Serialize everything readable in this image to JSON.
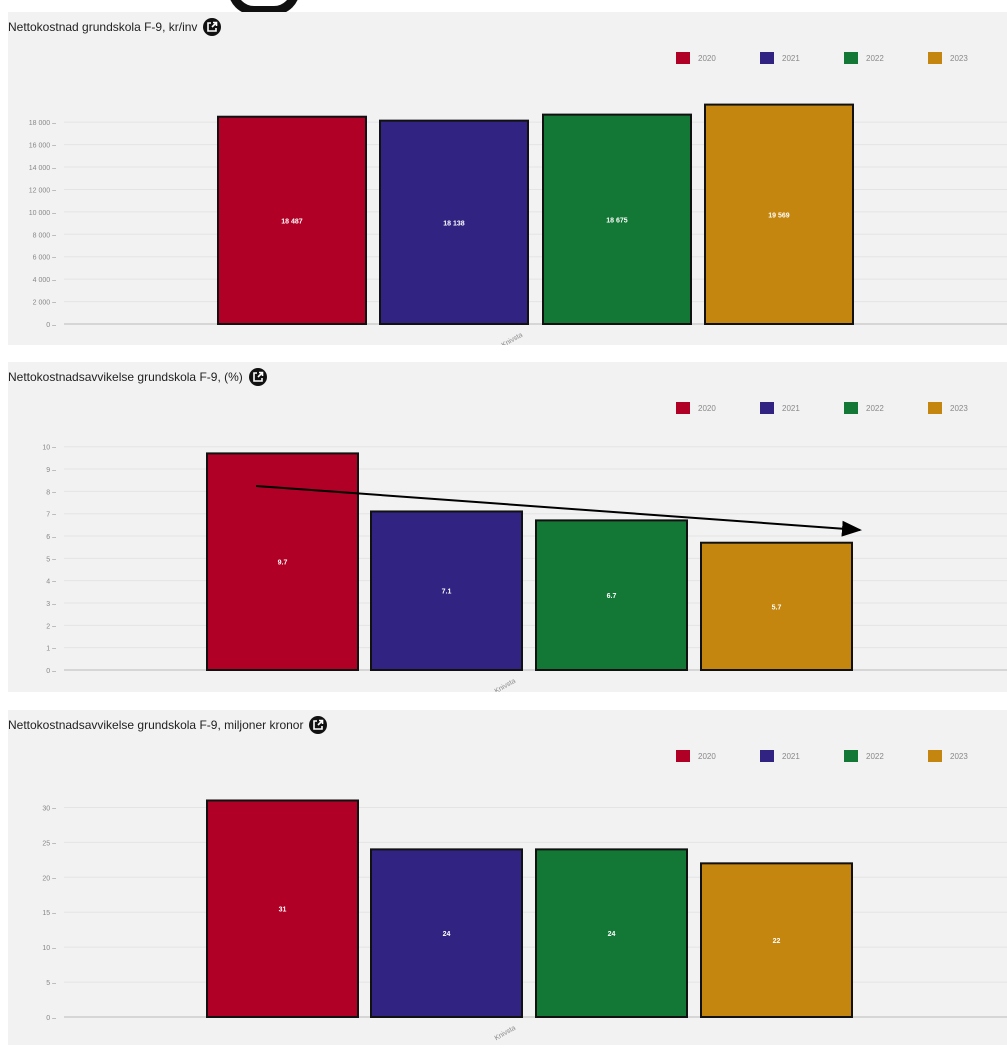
{
  "colors": {
    "2020": "#b00025",
    "2021": "#302382",
    "2022": "#137836",
    "2023": "#c4860f",
    "text": "#222222",
    "grid": "#e4e4e4"
  },
  "panels": [
    {
      "title": "Nettokostnad grundskola F-9, kr/inv",
      "legend": [
        "2020",
        "2021",
        "2022",
        "2023"
      ],
      "icon": "external-link-icon"
    },
    {
      "title": "Nettokostnadsavvikelse grundskola F-9, (%)",
      "legend": [
        "2020",
        "2021",
        "2022",
        "2023"
      ],
      "icon": "external-link-icon"
    },
    {
      "title": "Nettokostnadsavvikelse grundskola F-9, miljoner kronor",
      "legend": [
        "2020",
        "2021",
        "2022",
        "2023"
      ],
      "icon": "external-link-icon"
    }
  ],
  "chart_data": [
    {
      "type": "bar",
      "title": "Nettokostnad grundskola F-9, kr/inv",
      "categories": [
        "Knivsta"
      ],
      "series": [
        {
          "name": "2020",
          "values": [
            18487
          ],
          "label": "18 487"
        },
        {
          "name": "2021",
          "values": [
            18138
          ],
          "label": "18 138"
        },
        {
          "name": "2022",
          "values": [
            18675
          ],
          "label": "18 675"
        },
        {
          "name": "2023",
          "values": [
            19569
          ],
          "label": "19 569"
        }
      ],
      "yticks": [
        "0",
        "2 000",
        "4 000",
        "6 000",
        "8 000",
        "10 000",
        "12 000",
        "14 000",
        "16 000",
        "18 000"
      ],
      "ylim": [
        0,
        19800
      ],
      "grid": true,
      "legend_position": "top-right"
    },
    {
      "type": "bar",
      "title": "Nettokostnadsavvikelse grundskola F-9, (%)",
      "categories": [
        "Knivsta"
      ],
      "series": [
        {
          "name": "2020",
          "values": [
            9.7
          ],
          "label": "9.7"
        },
        {
          "name": "2021",
          "values": [
            7.1
          ],
          "label": "7.1"
        },
        {
          "name": "2022",
          "values": [
            6.7
          ],
          "label": "6.7"
        },
        {
          "name": "2023",
          "values": [
            5.7
          ],
          "label": "5.7"
        }
      ],
      "yticks": [
        "0",
        "1",
        "2",
        "3",
        "4",
        "5",
        "6",
        "7",
        "8",
        "9",
        "10"
      ],
      "ylim": [
        0,
        10.3
      ],
      "grid": true,
      "legend_position": "top-right",
      "annotation": "downward trend arrow"
    },
    {
      "type": "bar",
      "title": "Nettokostnadsavvikelse grundskola F-9, miljoner kronor",
      "categories": [
        "Knivsta"
      ],
      "series": [
        {
          "name": "2020",
          "values": [
            31
          ],
          "label": "31"
        },
        {
          "name": "2021",
          "values": [
            24
          ],
          "label": "24"
        },
        {
          "name": "2022",
          "values": [
            24
          ],
          "label": "24"
        },
        {
          "name": "2023",
          "values": [
            22
          ],
          "label": "22"
        }
      ],
      "yticks": [
        "0",
        "5",
        "10",
        "15",
        "20",
        "25",
        "30"
      ],
      "ylim": [
        0,
        32.5
      ],
      "grid": true,
      "legend_position": "top-right"
    }
  ]
}
